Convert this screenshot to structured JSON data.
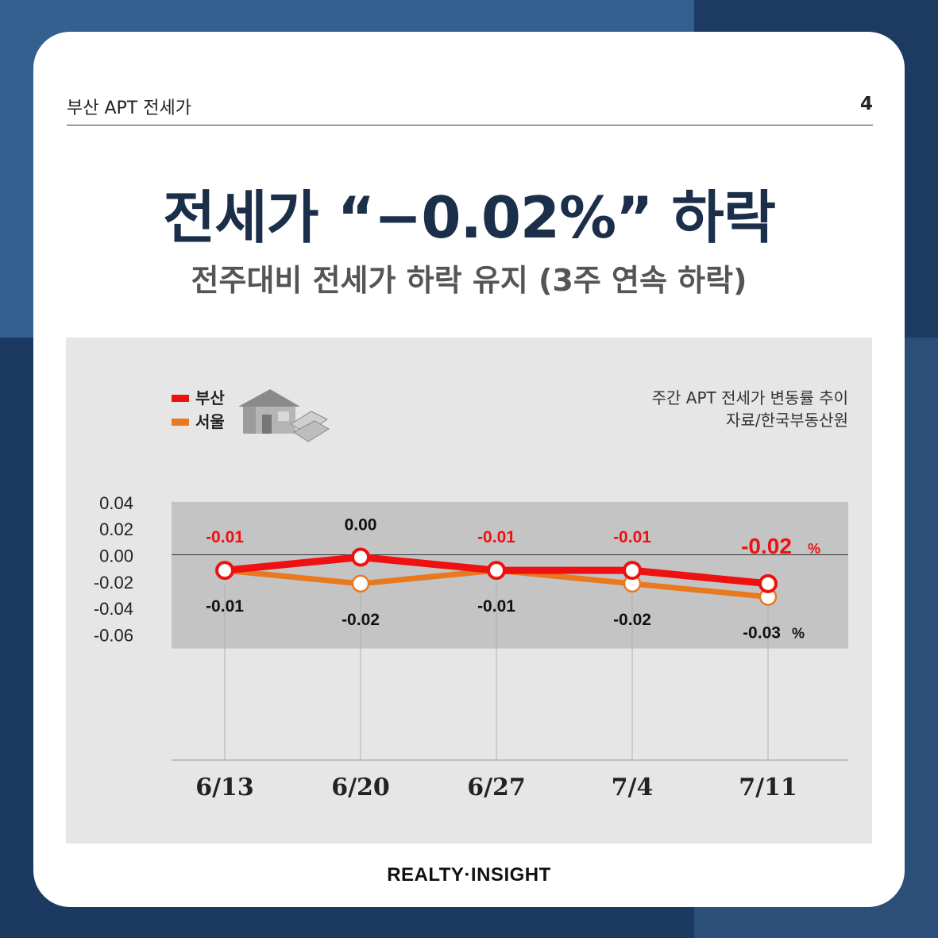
{
  "header": {
    "title": "부산 APT 전세가",
    "page": "4"
  },
  "headline": "전세가 “−0.02%” 하락",
  "subhead": "전주대비 전세가 하락 유지 (3주 연속 하락)",
  "source_line1": "주간 APT 전세가 변동률 추이",
  "source_line2": "자료/한국부동산원",
  "footer": "REALTY·INSIGHT",
  "colors": {
    "busan": "#ee1111",
    "seoul": "#e8791f",
    "headline": "#1c2f4a",
    "band": "#c4c4c4",
    "panel": "#e6e6e6"
  },
  "chart_data": {
    "type": "line",
    "categories": [
      "6/13",
      "6/20",
      "6/27",
      "7/4",
      "7/11"
    ],
    "series": [
      {
        "name": "부산",
        "values": [
          -0.01,
          0.0,
          -0.01,
          -0.01,
          -0.02
        ],
        "labels": [
          "-0.01",
          "0.00",
          "-0.01",
          "-0.01",
          "-0.02"
        ]
      },
      {
        "name": "서울",
        "values": [
          -0.01,
          -0.02,
          -0.01,
          -0.02,
          -0.03
        ],
        "labels": [
          "-0.01",
          "-0.02",
          "-0.01",
          "-0.02",
          "-0.03"
        ]
      }
    ],
    "y_ticks": [
      "0.04",
      "0.02",
      "0.00",
      "-0.02",
      "-0.04",
      "-0.06"
    ],
    "ylim": [
      -0.06,
      0.04
    ],
    "unit_suffix": "%",
    "legend_position": "top-left",
    "grid": "horizontal bands"
  }
}
